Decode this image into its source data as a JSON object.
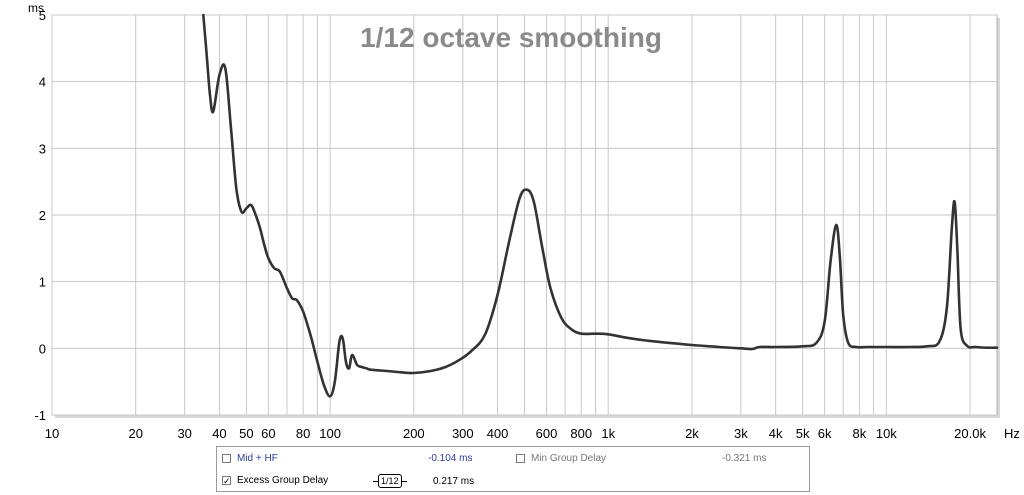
{
  "chart_data": {
    "type": "line",
    "title": "1/12 octave smoothing",
    "ylabel": "ms",
    "xlabel": "Hz",
    "xscale": "log",
    "xlim": [
      10,
      25000
    ],
    "ylim": [
      -1,
      5
    ],
    "y_ticks": [
      -1,
      0,
      1,
      2,
      3,
      4,
      5
    ],
    "y_tick_labels": [
      "-1",
      "0",
      "1",
      "2",
      "3",
      "4",
      "5"
    ],
    "x_ticks": [
      10,
      20,
      30,
      40,
      50,
      60,
      80,
      100,
      200,
      300,
      400,
      600,
      800,
      1000,
      2000,
      3000,
      4000,
      5000,
      6000,
      8000,
      10000,
      20000
    ],
    "x_tick_labels": [
      "10",
      "20",
      "30",
      "40",
      "50",
      "60",
      "80",
      "100",
      "200",
      "300",
      "400",
      "600",
      "800",
      "1k",
      "2k",
      "3k",
      "4k",
      "5k",
      "6k",
      "8k",
      "10k",
      "20.0k"
    ],
    "grid": true,
    "colors": {
      "line": "#333333",
      "grid": "#c8c8c8",
      "title": "#8a8a8a",
      "border": "#b0b0b0"
    },
    "series": [
      {
        "x": [
          35,
          36,
          37,
          38,
          40,
          42,
          44,
          46,
          48,
          50,
          52,
          54,
          56,
          58,
          60,
          63,
          66,
          70,
          73,
          76,
          80,
          85,
          90,
          95,
          100,
          104,
          108,
          111,
          114,
          117,
          120,
          125,
          130,
          135,
          140,
          160,
          180,
          200,
          230,
          260,
          290,
          320,
          360,
          400,
          440,
          480,
          510,
          540,
          580,
          620,
          680,
          740,
          800,
          900,
          1000,
          1200,
          1500,
          2000,
          2500,
          3000,
          3300,
          3500,
          4000,
          5000,
          5600,
          6000,
          6300,
          6600,
          6800,
          7000,
          7300,
          7800,
          8500,
          10000,
          12000,
          14000,
          15500,
          16500,
          17200,
          17600,
          18000,
          18500,
          19500,
          21000,
          23000,
          25000
        ],
        "y": [
          5.0,
          4.4,
          3.8,
          3.55,
          4.1,
          4.2,
          3.3,
          2.4,
          2.05,
          2.1,
          2.15,
          2.0,
          1.8,
          1.55,
          1.35,
          1.2,
          1.15,
          0.9,
          0.75,
          0.72,
          0.55,
          0.2,
          -0.2,
          -0.55,
          -0.72,
          -0.5,
          0.1,
          0.15,
          -0.2,
          -0.3,
          -0.1,
          -0.25,
          -0.28,
          -0.3,
          -0.32,
          -0.34,
          -0.36,
          -0.37,
          -0.34,
          -0.28,
          -0.18,
          -0.05,
          0.2,
          0.8,
          1.6,
          2.25,
          2.38,
          2.2,
          1.5,
          0.9,
          0.45,
          0.28,
          0.22,
          0.22,
          0.21,
          0.15,
          0.1,
          0.05,
          0.02,
          0.0,
          -0.01,
          0.02,
          0.02,
          0.03,
          0.08,
          0.4,
          1.3,
          1.85,
          1.4,
          0.5,
          0.08,
          0.02,
          0.02,
          0.02,
          0.02,
          0.03,
          0.1,
          0.6,
          1.8,
          2.2,
          1.5,
          0.3,
          0.04,
          0.02,
          0.01,
          0.01
        ]
      }
    ]
  },
  "legend": {
    "items": [
      {
        "label": "Mid + HF",
        "checked": false,
        "value": "-0.104 ms",
        "color": "#2a3fa0"
      },
      {
        "label": "Min Group Delay",
        "checked": false,
        "value": "-0.321 ms",
        "color": "#777777"
      },
      {
        "label": "Excess Group Delay",
        "checked": true,
        "value": "0.217 ms",
        "color": "#000000"
      }
    ],
    "smoothing_badge": "1/12",
    "check_mark": "✓"
  }
}
